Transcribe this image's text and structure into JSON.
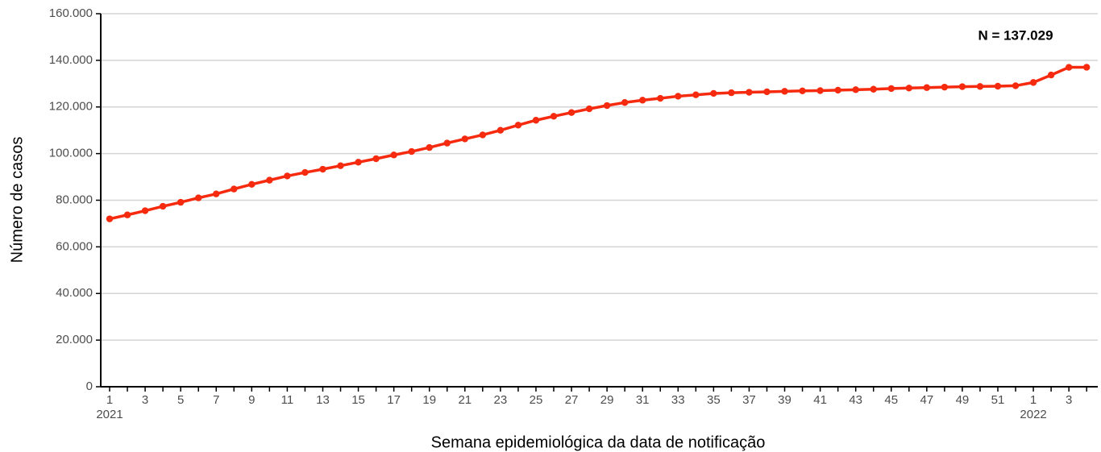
{
  "chart_data": {
    "type": "line",
    "y_label": "Número de casos",
    "x_label": "Semana epidemiológica da data de notificação",
    "annotation": "N = 137.029",
    "categories": [
      "1",
      null,
      "3",
      null,
      "5",
      null,
      "7",
      null,
      "9",
      null,
      "11",
      null,
      "13",
      null,
      "15",
      null,
      "17",
      null,
      "19",
      null,
      "21",
      null,
      "23",
      null,
      "25",
      null,
      "27",
      null,
      "29",
      null,
      "31",
      null,
      "33",
      null,
      "35",
      null,
      "37",
      null,
      "39",
      null,
      "41",
      null,
      "43",
      null,
      "45",
      null,
      "47",
      null,
      "49",
      null,
      "51",
      null,
      "1",
      null,
      "3",
      null
    ],
    "years": [
      "2021",
      null,
      null,
      null,
      null,
      null,
      null,
      null,
      null,
      null,
      null,
      null,
      null,
      null,
      null,
      null,
      null,
      null,
      null,
      null,
      null,
      null,
      null,
      null,
      null,
      null,
      null,
      null,
      null,
      null,
      null,
      null,
      null,
      null,
      null,
      null,
      null,
      null,
      null,
      null,
      null,
      null,
      null,
      null,
      null,
      null,
      null,
      null,
      null,
      null,
      null,
      null,
      "2022",
      null,
      null,
      null
    ],
    "series": [
      {
        "color": "#f52a0e",
        "values": [
          72000,
          73700,
          75500,
          77400,
          79100,
          81000,
          82700,
          84800,
          86800,
          88600,
          90400,
          91900,
          93300,
          94800,
          96300,
          97800,
          99400,
          100900,
          102600,
          104500,
          106300,
          108000,
          110000,
          112200,
          114300,
          116000,
          117600,
          119200,
          120600,
          121900,
          122900,
          123700,
          124600,
          125200,
          125800,
          126100,
          126300,
          126500,
          126700,
          126900,
          127000,
          127200,
          127400,
          127600,
          127900,
          128100,
          128300,
          128500,
          128700,
          128800,
          128900,
          129100,
          130500,
          133700,
          137000,
          137029
        ]
      }
    ],
    "ylim": [
      0,
      160000
    ],
    "yticks": [
      0,
      {
        "value": 20000,
        "label": "20.000"
      },
      {
        "value": 40000,
        "label": "40.000"
      },
      {
        "value": 60000,
        "label": "60.000"
      },
      {
        "value": 80000,
        "label": "80.000"
      },
      {
        "value": 100000,
        "label": "100.000"
      },
      {
        "value": 120000,
        "label": "120.000"
      },
      {
        "value": 140000,
        "label": "140.000"
      },
      {
        "value": 160000,
        "label": "160.000"
      }
    ],
    "grid": true
  }
}
